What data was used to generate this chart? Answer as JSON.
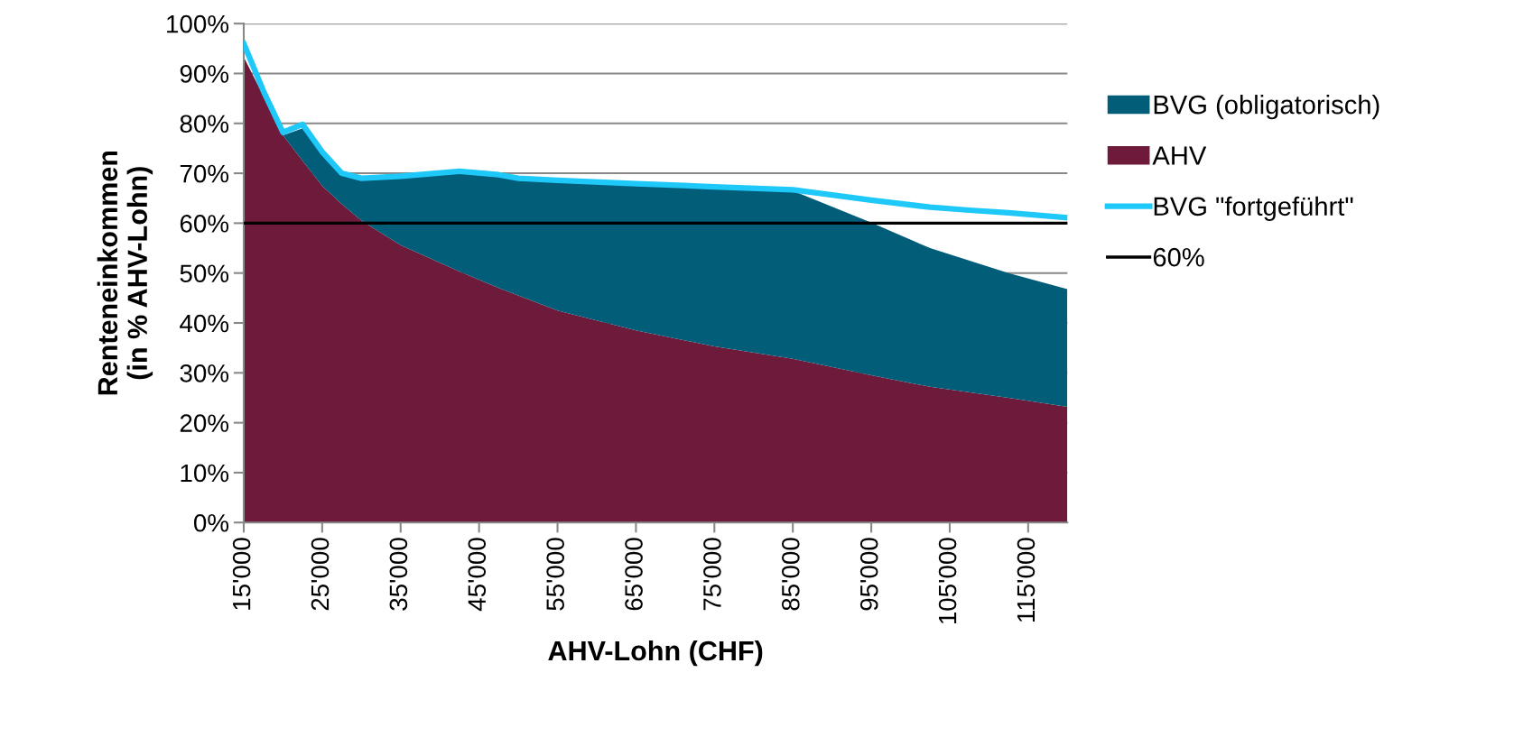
{
  "chart_data": {
    "type": "area",
    "stacked": true,
    "xlabel": "AHV-Lohn (CHF)",
    "ylabel": "Renteneinkommen\n(in % AHV-Lohn)",
    "x": [
      15000,
      17500,
      20000,
      22500,
      25000,
      27500,
      30000,
      35000,
      42500,
      47500,
      55000,
      65000,
      75000,
      85000,
      95000,
      102500,
      112500,
      120000
    ],
    "series": [
      {
        "name": "AHV",
        "color": "#6d1a3b",
        "values": [
          93.3,
          85.5,
          77.6,
          72.5,
          67.5,
          63.8,
          60.5,
          55.6,
          50.3,
          47,
          42.5,
          38.5,
          35.3,
          32.8,
          29.5,
          27.2,
          25,
          23.2
        ]
      },
      {
        "name": "BVG (obligatorisch)",
        "color": "#025d79",
        "values": [
          0,
          0,
          0,
          6.5,
          6.5,
          5.9,
          8.5,
          13.7,
          19.9,
          22.5,
          26,
          29.3,
          31.9,
          33.7,
          30.6,
          27.8,
          25,
          23.6
        ]
      },
      {
        "name": "BVG \"fortgeführt\"",
        "type": "line",
        "color": "#1ec8f8",
        "x": [
          15000,
          17500,
          20000,
          22500,
          25000,
          27500,
          30000,
          35000,
          42500,
          47500,
          50000,
          55000,
          65000,
          75000,
          85000,
          95000,
          102500,
          107500,
          112500,
          120000
        ],
        "values": [
          96,
          86.5,
          78.2,
          79.8,
          74.3,
          70,
          69,
          69.4,
          70.4,
          69.7,
          69,
          68.6,
          67.9,
          67.3,
          66.7,
          64.6,
          63.2,
          62.6,
          62.1,
          61.1
        ]
      }
    ],
    "ref_lines": [
      {
        "axis": "y",
        "value": 60,
        "label": "60%",
        "color": "#000000",
        "line_style": "solid"
      }
    ],
    "xlim": [
      15000,
      120000
    ],
    "xticks": [
      {
        "value": 15000,
        "label": "15'000"
      },
      {
        "value": 25000,
        "label": "25'000"
      },
      {
        "value": 35000,
        "label": "35'000"
      },
      {
        "value": 45000,
        "label": "45'000"
      },
      {
        "value": 55000,
        "label": "55'000"
      },
      {
        "value": 65000,
        "label": "65'000"
      },
      {
        "value": 75000,
        "label": "75'000"
      },
      {
        "value": 85000,
        "label": "85'000"
      },
      {
        "value": 95000,
        "label": "95'000"
      },
      {
        "value": 105000,
        "label": "105'000"
      },
      {
        "value": 115000,
        "label": "115'000"
      }
    ],
    "ylim": [
      0,
      100
    ],
    "yticks": [
      {
        "value": 0,
        "label": "0%"
      },
      {
        "value": 10,
        "label": "10%"
      },
      {
        "value": 20,
        "label": "20%"
      },
      {
        "value": 30,
        "label": "30%"
      },
      {
        "value": 40,
        "label": "40%"
      },
      {
        "value": 50,
        "label": "50%"
      },
      {
        "value": 60,
        "label": "60%"
      },
      {
        "value": 70,
        "label": "70%"
      },
      {
        "value": 80,
        "label": "80%"
      },
      {
        "value": 90,
        "label": "90%"
      },
      {
        "value": 100,
        "label": "100%"
      }
    ],
    "grid": "y",
    "legend": "right"
  }
}
